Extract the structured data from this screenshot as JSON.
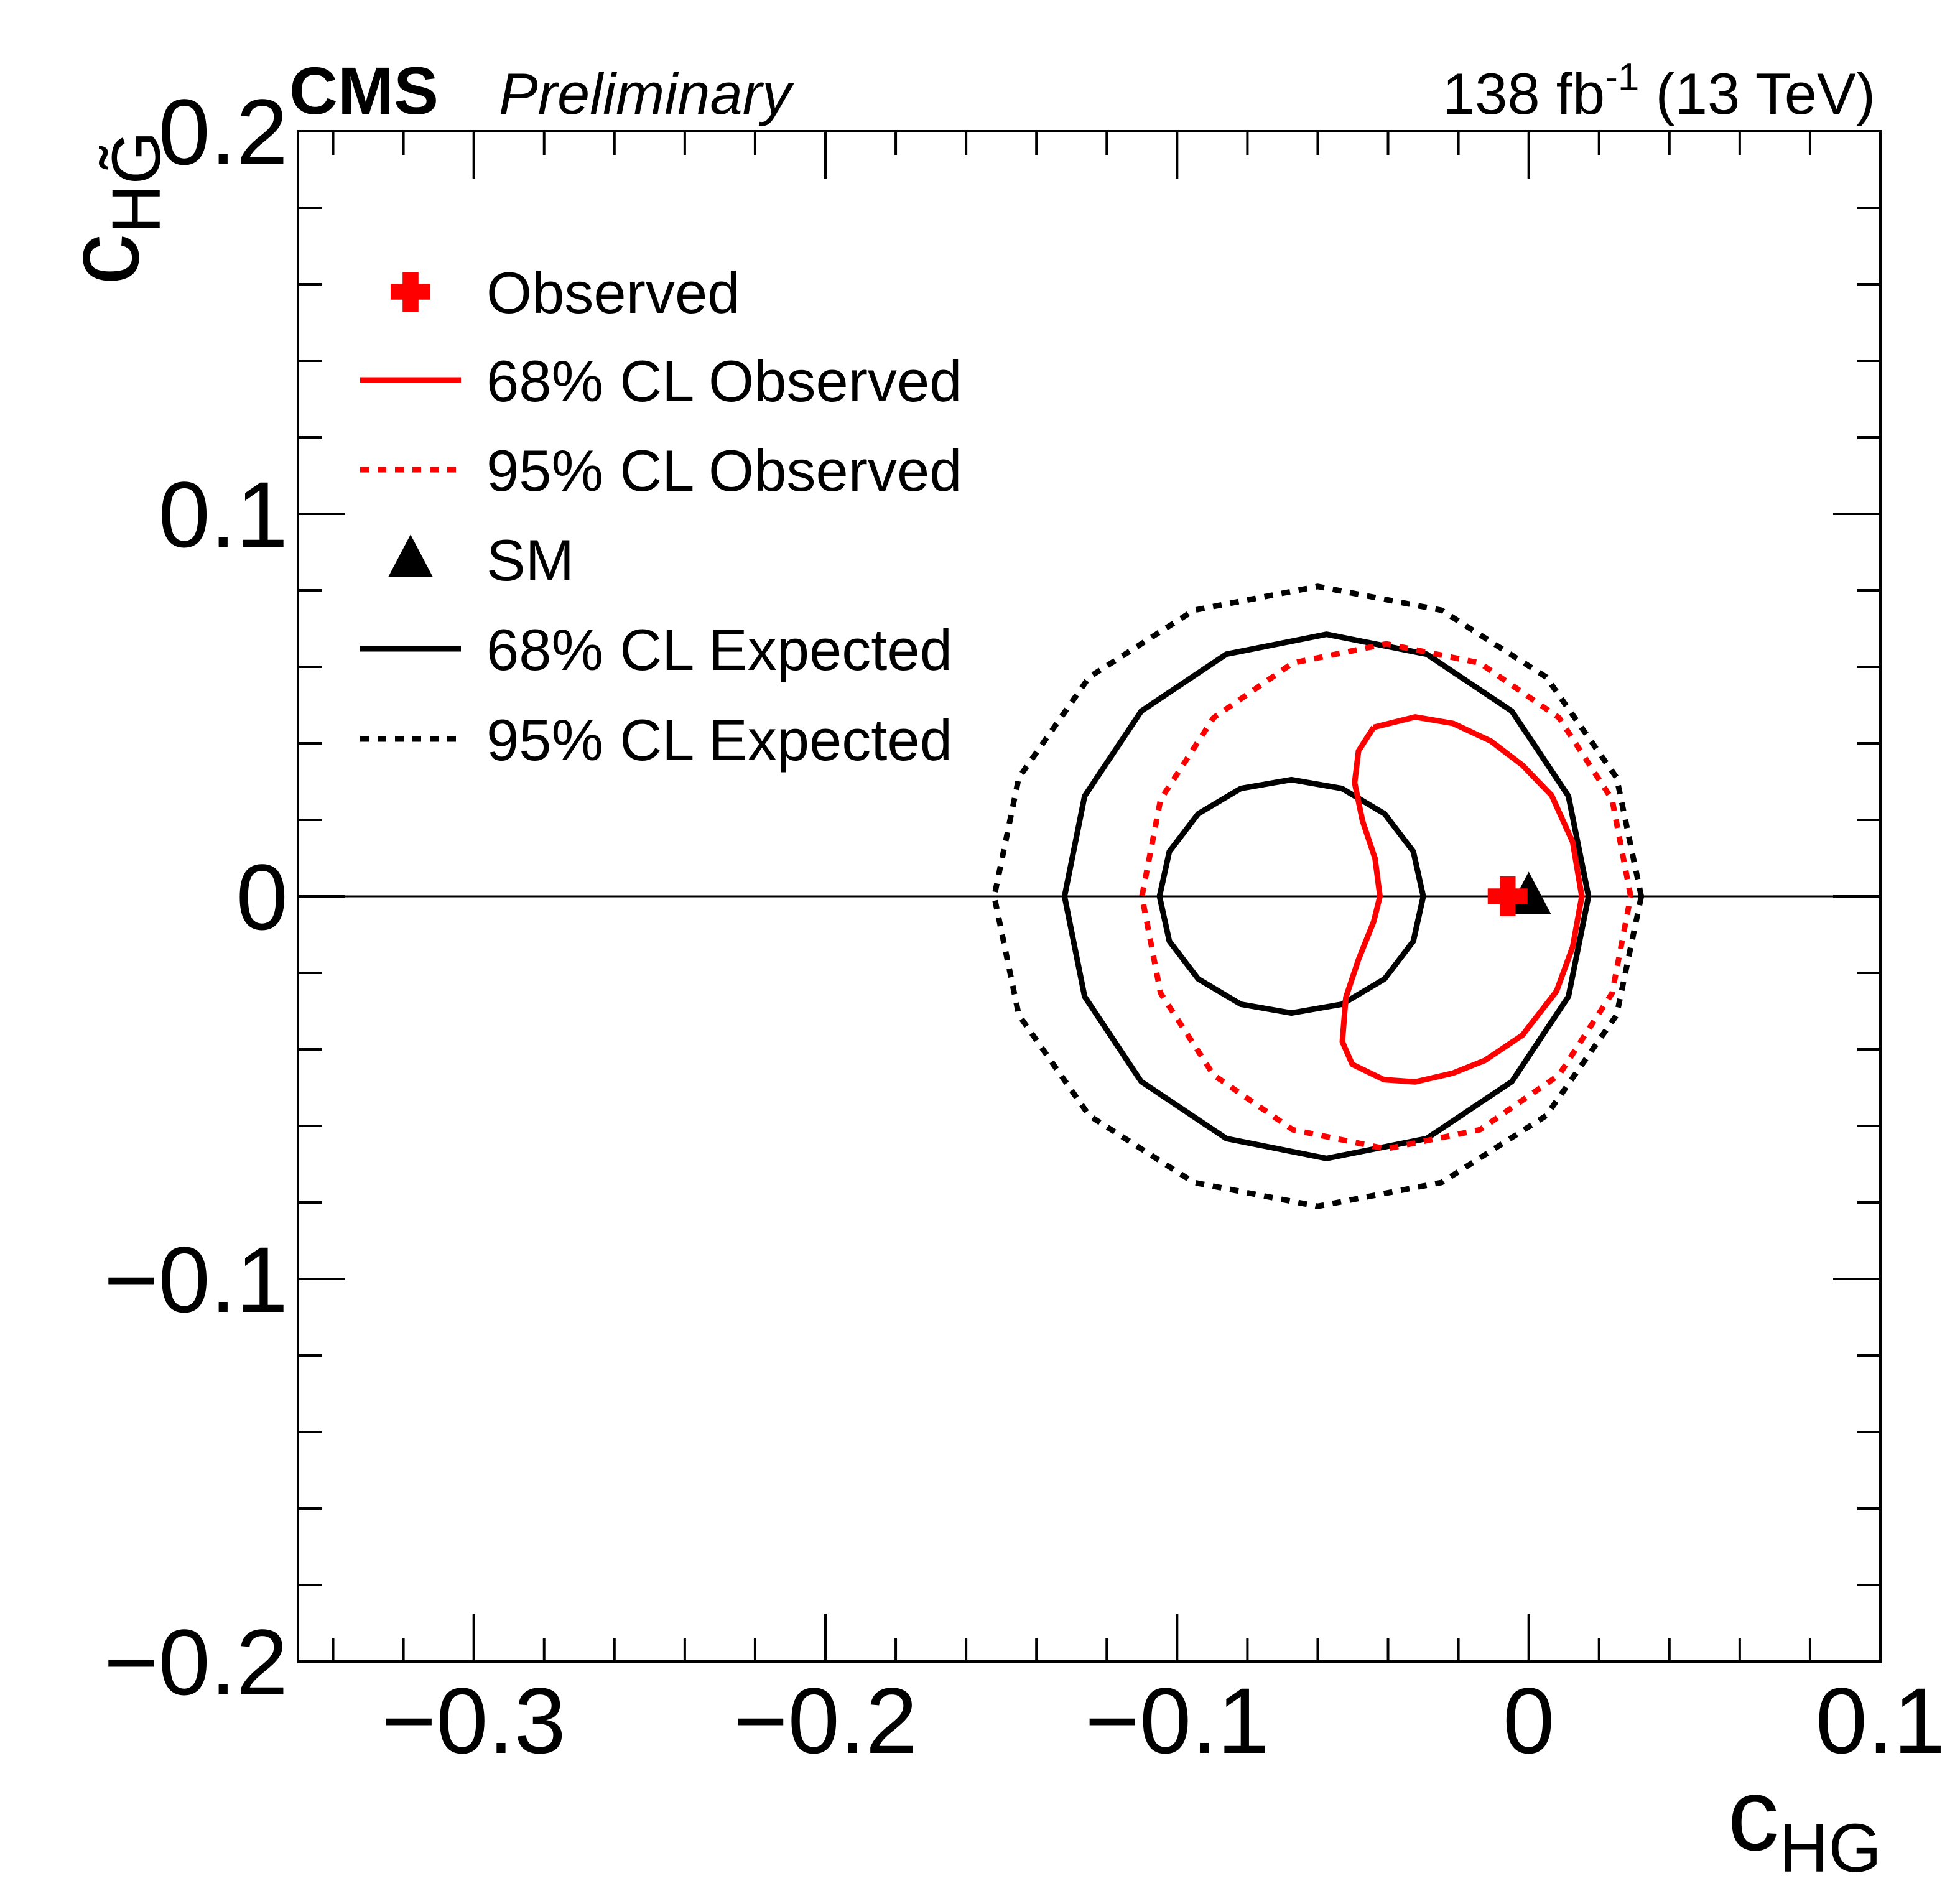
{
  "chart_data": {
    "type": "contour",
    "title": "CMS",
    "subtitle": "Preliminary",
    "lumi": {
      "main": "138 fb",
      "sup": "-1",
      "energy": " (13 TeV)"
    },
    "xlabel": {
      "main": "c",
      "sub": "HG"
    },
    "ylabel": {
      "main": "c",
      "sub": "HG̃"
    },
    "xlim": [
      -0.35,
      0.1
    ],
    "ylim": [
      -0.2,
      0.2
    ],
    "xticks": [
      {
        "value": -0.3,
        "label": "−0.3"
      },
      {
        "value": -0.2,
        "label": "−0.2"
      },
      {
        "value": -0.1,
        "label": "−0.1"
      },
      0,
      0.1
    ],
    "yticks": [
      {
        "value": -0.2,
        "label": "−0.2"
      },
      {
        "value": -0.1,
        "label": "−0.1"
      },
      0,
      0.1,
      0.2
    ],
    "minor_ticks": true,
    "hline": 0,
    "series": [
      {
        "name": "Observed",
        "color": "#ff0000",
        "marker": "cross",
        "x": [
          -0.006
        ],
        "y": [
          0
        ]
      },
      {
        "name": "68% CL Observed",
        "color": "#ff0000",
        "style": "solid",
        "x": [
          -0.0441,
          -0.0323,
          -0.0215,
          -0.0108,
          -0.0018,
          0.0065,
          0.0125,
          0.0151,
          0.0125,
          0.0079,
          -0.0018,
          -0.0125,
          -0.0215,
          -0.0323,
          -0.0412,
          -0.0502,
          -0.053,
          -0.052,
          -0.0484,
          -0.0441,
          -0.0423,
          -0.0437,
          -0.0473,
          -0.0495,
          -0.0484,
          -0.0441
        ],
        "y": [
          0.0442,
          0.0469,
          0.0452,
          0.0406,
          0.0343,
          0.0264,
          0.0142,
          0,
          -0.0132,
          -0.0248,
          -0.0363,
          -0.0429,
          -0.0462,
          -0.0485,
          -0.0479,
          -0.0439,
          -0.038,
          -0.0264,
          -0.0165,
          -0.0066,
          0,
          0.0099,
          0.0198,
          0.0297,
          0.038,
          0.0442
        ]
      },
      {
        "name": "95% CL Observed",
        "color": "#ff0000",
        "style": "dotted",
        "x": [
          0.029,
          0.0237,
          0.0086,
          -0.0139,
          -0.0405,
          -0.0671,
          -0.0896,
          -0.1047,
          -0.11,
          -0.1047,
          -0.0896,
          -0.0671,
          -0.0405,
          -0.0139,
          0.0086,
          0.0237,
          0.029
        ],
        "y": [
          0,
          0.0253,
          0.0467,
          0.061,
          0.066,
          0.061,
          0.0467,
          0.0253,
          0,
          -0.0253,
          -0.0467,
          -0.061,
          -0.066,
          -0.061,
          -0.0467,
          -0.0253,
          0
        ]
      },
      {
        "name": "SM",
        "color": "#000000",
        "marker": "triangle",
        "x": [
          0
        ],
        "y": [
          0
        ]
      },
      {
        "name": "68% CL Expected",
        "color": "#000000",
        "style": "solid",
        "x": [
          0.017,
          0.0113,
          -0.0048,
          -0.029,
          -0.0575,
          -0.086,
          -0.1102,
          -0.1263,
          -0.132,
          -0.1263,
          -0.1102,
          -0.086,
          -0.0575,
          -0.029,
          -0.0048,
          0.0113,
          0.017,
          null,
          -0.03,
          -0.0328,
          -0.041,
          -0.0531,
          -0.0675,
          -0.0819,
          -0.094,
          -0.1022,
          -0.105,
          -0.1022,
          -0.094,
          -0.0819,
          -0.0675,
          -0.0531,
          -0.041,
          -0.0328,
          -0.03
        ],
        "y": [
          0,
          0.0262,
          0.0484,
          0.0633,
          0.0685,
          0.0633,
          0.0484,
          0.0262,
          0,
          -0.0262,
          -0.0484,
          -0.0633,
          -0.0685,
          -0.0633,
          -0.0484,
          -0.0262,
          0,
          null,
          0,
          0.0117,
          0.0216,
          0.0282,
          0.0305,
          0.0282,
          0.0216,
          0.0117,
          0,
          -0.0117,
          -0.0216,
          -0.0282,
          -0.0305,
          -0.0282,
          -0.0216,
          -0.0117,
          0
        ]
      },
      {
        "name": "95% CL Expected",
        "color": "#000000",
        "style": "dotted",
        "x": [
          0.032,
          0.025,
          0.005,
          -0.0248,
          -0.06,
          -0.0952,
          -0.125,
          -0.145,
          -0.152,
          -0.145,
          -0.125,
          -0.0952,
          -0.06,
          -0.0248,
          0.005,
          0.025,
          0.032
        ],
        "y": [
          0,
          0.031,
          0.0573,
          0.0748,
          0.081,
          0.0748,
          0.0573,
          0.031,
          0,
          -0.031,
          -0.0573,
          -0.0748,
          -0.081,
          -0.0748,
          -0.0573,
          -0.031,
          0
        ]
      }
    ]
  }
}
